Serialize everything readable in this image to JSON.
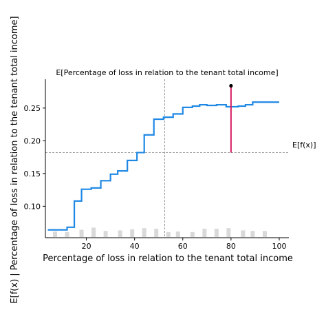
{
  "chart_data": {
    "type": "line",
    "title": "E[Percentage of loss in relation to the tenant total income]",
    "xlabel": "Percentage of loss in relation to the tenant total income",
    "ylabel": "E[f(x) | Percentage of loss in relation to the tenant total income]",
    "xlim": [
      3,
      104
    ],
    "ylim": [
      0.052,
      0.294
    ],
    "xticks": [
      20,
      40,
      60,
      80,
      100
    ],
    "yticks": [
      0.1,
      0.15,
      0.2,
      0.25
    ],
    "xtick_labels": [
      "20",
      "40",
      "60",
      "80",
      "100"
    ],
    "ytick_labels": [
      "0.10",
      "0.15",
      "0.20",
      "0.25"
    ],
    "grid": false,
    "colors": {
      "line": "#1e88e5",
      "hist": "#d9d9d9",
      "reference": "#999999",
      "highlight": "#d81b60",
      "point": "#000000"
    },
    "series": [
      {
        "x": [
          4,
          12,
          15,
          18,
          22,
          26,
          30,
          33,
          37,
          41,
          44,
          48,
          52,
          56,
          60,
          64,
          67,
          70,
          74,
          78,
          83,
          86,
          89,
          92,
          96,
          100
        ],
        "y": [
          0.064,
          0.068,
          0.108,
          0.126,
          0.128,
          0.139,
          0.149,
          0.154,
          0.17,
          0.182,
          0.209,
          0.233,
          0.236,
          0.241,
          0.251,
          0.253,
          0.255,
          0.254,
          0.255,
          0.252,
          0.253,
          0.255,
          0.259,
          0.259,
          0.259,
          0.259
        ]
      }
    ],
    "histogram": {
      "x": [
        7,
        12,
        18,
        23,
        28,
        34,
        39,
        44,
        49,
        54,
        58,
        64,
        69,
        74,
        79,
        85,
        89,
        94
      ],
      "heights": [
        0.5,
        0.45,
        0.65,
        0.85,
        0.55,
        0.6,
        0.7,
        0.8,
        0.75,
        0.45,
        0.5,
        0.45,
        0.75,
        0.75,
        0.8,
        0.6,
        0.55,
        0.55
      ]
    },
    "expected_value": {
      "label": "E[f(x)]",
      "y": 0.182
    },
    "feature_mean_x": 52.5,
    "instance": {
      "x": 80,
      "y_point": 0.284
    }
  }
}
